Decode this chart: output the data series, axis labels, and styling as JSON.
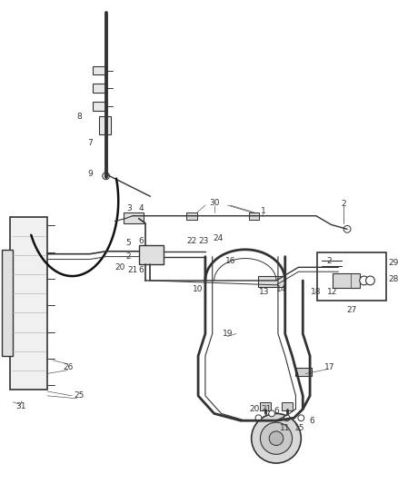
{
  "bg_color": "#ffffff",
  "fig_width": 4.38,
  "fig_height": 5.33,
  "dpi": 100,
  "lc": "#333333",
  "label_fontsize": 6.5
}
